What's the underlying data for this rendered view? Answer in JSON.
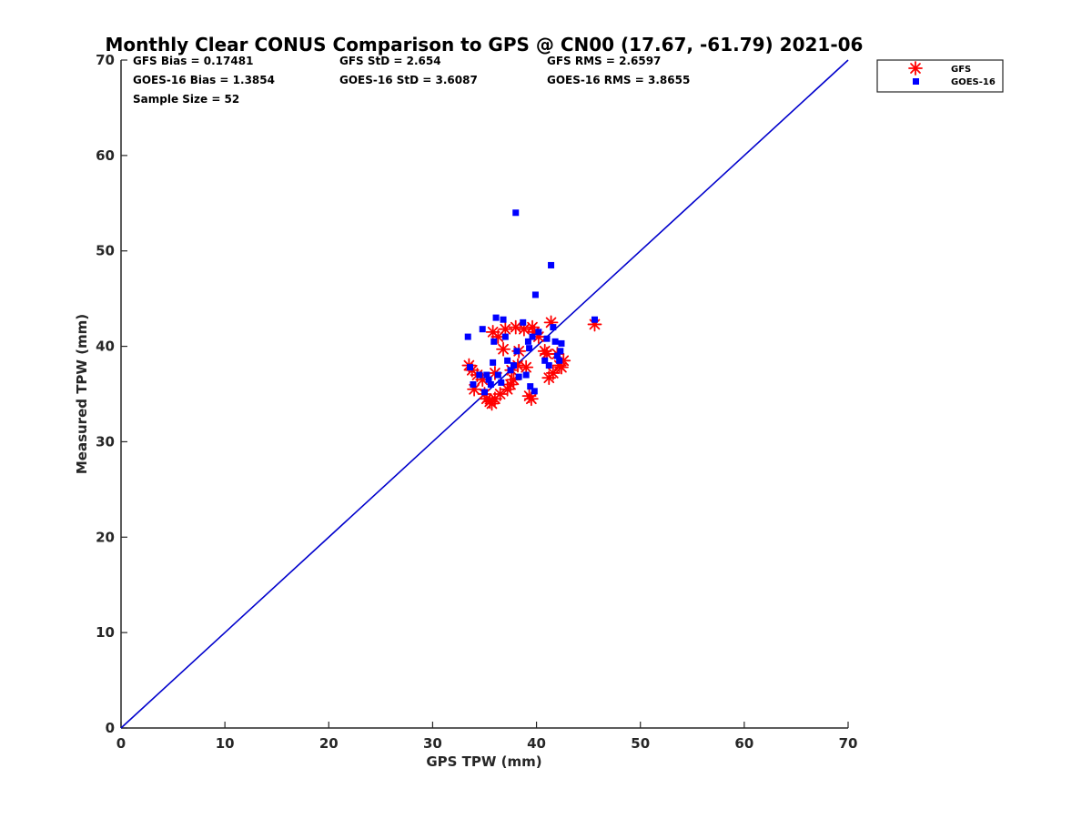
{
  "chart_data": {
    "type": "scatter",
    "title": "Monthly Clear CONUS Comparison to GPS @ CN00 (17.67, -61.79) 2021-06",
    "xlabel": "GPS TPW (mm)",
    "ylabel": "Measured TPW (mm)",
    "xlim": [
      0,
      70
    ],
    "ylim": [
      0,
      70
    ],
    "xticks": [
      0,
      10,
      20,
      30,
      40,
      50,
      60,
      70
    ],
    "yticks": [
      0,
      10,
      20,
      30,
      40,
      50,
      60,
      70
    ],
    "grid": false,
    "legend_position": "top-right outside",
    "reference_line": {
      "name": "1:1 line",
      "x": [
        0,
        70
      ],
      "y": [
        0,
        70
      ],
      "color": "#0000cc"
    },
    "stats": [
      [
        "GFS Bias = 0.17481",
        "GFS StD = 2.654",
        "GFS RMS = 2.6597"
      ],
      [
        "GOES-16 Bias = 1.3854",
        "GOES-16 StD = 3.6087",
        "GOES-16 RMS = 3.8655"
      ],
      [
        "Sample Size = 52"
      ]
    ],
    "series": [
      {
        "name": "GFS",
        "marker": "asterisk",
        "color": "#ff0000",
        "points": [
          [
            33.5,
            38.0
          ],
          [
            33.8,
            37.5
          ],
          [
            34.0,
            35.5
          ],
          [
            34.3,
            37.0
          ],
          [
            34.8,
            36.5
          ],
          [
            35.0,
            35.0
          ],
          [
            35.2,
            34.5
          ],
          [
            35.5,
            34.2
          ],
          [
            35.7,
            34.0
          ],
          [
            35.8,
            41.5
          ],
          [
            36.0,
            34.5
          ],
          [
            36.0,
            37.2
          ],
          [
            36.3,
            41.0
          ],
          [
            36.5,
            35.0
          ],
          [
            36.8,
            39.7
          ],
          [
            37.0,
            41.8
          ],
          [
            37.2,
            35.5
          ],
          [
            37.5,
            36.0
          ],
          [
            37.6,
            37.5
          ],
          [
            37.8,
            36.5
          ],
          [
            38.0,
            42.0
          ],
          [
            38.2,
            38.0
          ],
          [
            38.3,
            39.5
          ],
          [
            38.8,
            41.8
          ],
          [
            39.0,
            37.8
          ],
          [
            39.3,
            34.8
          ],
          [
            39.5,
            34.5
          ],
          [
            39.6,
            42.0
          ],
          [
            39.8,
            41.5
          ],
          [
            40.2,
            41.0
          ],
          [
            40.8,
            39.5
          ],
          [
            41.0,
            39.2
          ],
          [
            41.2,
            36.7
          ],
          [
            41.4,
            42.5
          ],
          [
            41.6,
            37.2
          ],
          [
            42.0,
            39.2
          ],
          [
            42.2,
            38.0
          ],
          [
            42.4,
            37.8
          ],
          [
            42.6,
            38.5
          ],
          [
            45.6,
            42.3
          ]
        ]
      },
      {
        "name": "GOES-16",
        "marker": "square",
        "color": "#0000ff",
        "points": [
          [
            33.4,
            41.0
          ],
          [
            33.6,
            37.8
          ],
          [
            33.9,
            36.0
          ],
          [
            34.5,
            37.0
          ],
          [
            34.8,
            41.8
          ],
          [
            35.0,
            35.2
          ],
          [
            35.2,
            37.0
          ],
          [
            35.4,
            36.5
          ],
          [
            35.6,
            36.0
          ],
          [
            35.8,
            38.3
          ],
          [
            35.9,
            40.5
          ],
          [
            36.1,
            43.0
          ],
          [
            36.3,
            37.0
          ],
          [
            36.6,
            36.2
          ],
          [
            36.8,
            42.8
          ],
          [
            37.0,
            41.0
          ],
          [
            37.2,
            38.5
          ],
          [
            37.5,
            37.5
          ],
          [
            37.8,
            38.0
          ],
          [
            38.0,
            54.0
          ],
          [
            38.1,
            39.5
          ],
          [
            38.3,
            36.8
          ],
          [
            38.7,
            42.5
          ],
          [
            39.0,
            37.0
          ],
          [
            39.2,
            40.5
          ],
          [
            39.3,
            39.8
          ],
          [
            39.4,
            35.8
          ],
          [
            39.6,
            41.0
          ],
          [
            39.8,
            35.3
          ],
          [
            39.9,
            45.4
          ],
          [
            40.2,
            41.5
          ],
          [
            40.8,
            38.5
          ],
          [
            41.0,
            40.8
          ],
          [
            41.2,
            38.0
          ],
          [
            41.4,
            48.5
          ],
          [
            41.6,
            42.0
          ],
          [
            41.8,
            40.5
          ],
          [
            42.0,
            39.0
          ],
          [
            42.2,
            38.5
          ],
          [
            42.3,
            39.5
          ],
          [
            42.4,
            40.3
          ],
          [
            45.6,
            42.8
          ]
        ]
      }
    ]
  }
}
